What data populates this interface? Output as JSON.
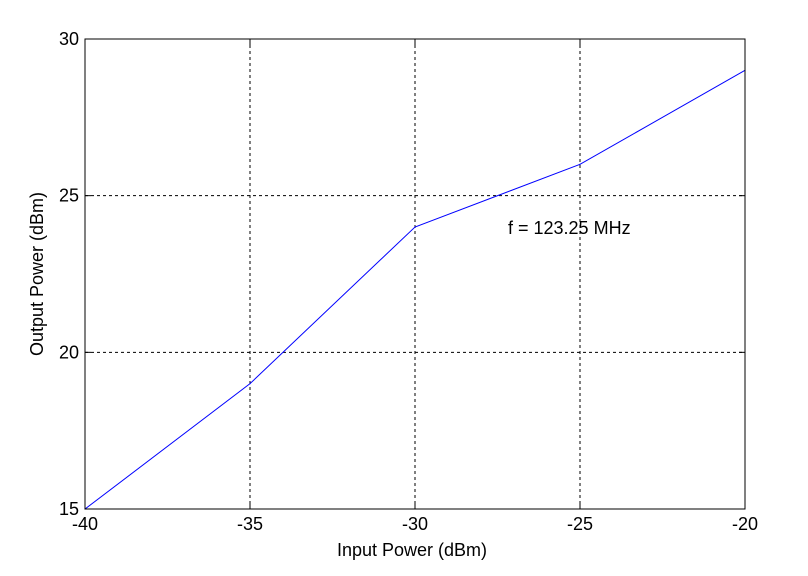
{
  "chart_data": {
    "type": "line",
    "title": "",
    "xlabel": "Input Power (dBm)",
    "ylabel": "Output Power (dBm)",
    "xlim": [
      -40,
      -20
    ],
    "ylim": [
      15,
      30
    ],
    "xticks": [
      -40,
      -35,
      -30,
      -25,
      -20
    ],
    "yticks": [
      15,
      20,
      25,
      30
    ],
    "xtick_labels": [
      "-40",
      "-35",
      "-30",
      "-25",
      "-20"
    ],
    "ytick_labels": [
      "15",
      "20",
      "25",
      "30"
    ],
    "grid": true,
    "series": [
      {
        "color": "#0000ff",
        "x": [
          -40,
          -35,
          -30,
          -25,
          -20
        ],
        "y": [
          15,
          19,
          24,
          26,
          29
        ]
      }
    ],
    "annotations": [
      {
        "text": "f = 123.25 MHz",
        "x": -26,
        "y": 24
      }
    ]
  }
}
